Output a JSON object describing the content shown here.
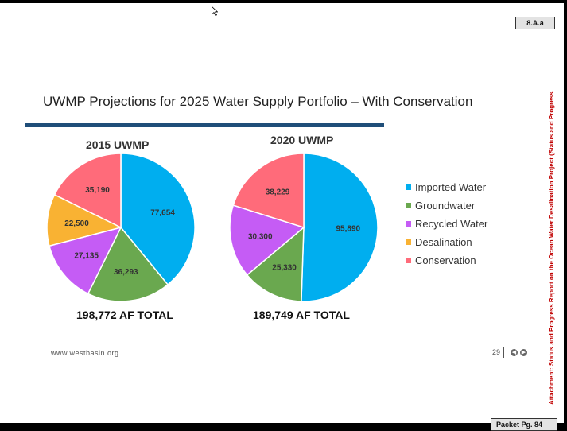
{
  "tag": "8.A.a",
  "slide": {
    "title": "UWMP Projections for 2025 Water Supply Portfolio – With Conservation",
    "footer_url": "www.westbasin.org",
    "page_number": "29"
  },
  "side_text": "Attachment: Status and Progress Report on the Ocean Water Desalination Project  (Status and Progress",
  "packet_label": "Packet Pg. 84",
  "colors": {
    "imported": "#00aeef",
    "groundwater": "#6aa84f",
    "recycled": "#c55cf5",
    "desalination": "#f9b233",
    "conservation": "#ff6b7a"
  },
  "chart_data": [
    {
      "type": "pie",
      "title": "2015 UWMP",
      "total_label": "198,772 AF TOTAL",
      "slices": [
        {
          "name": "Imported Water",
          "value": 77654,
          "label": "77,654",
          "color": "#00aeef"
        },
        {
          "name": "Groundwater",
          "value": 36293,
          "label": "36,293",
          "color": "#6aa84f"
        },
        {
          "name": "Recycled Water",
          "value": 27135,
          "label": "27,135",
          "color": "#c55cf5"
        },
        {
          "name": "Desalination",
          "value": 22500,
          "label": "22,500",
          "color": "#f9b233"
        },
        {
          "name": "Conservation",
          "value": 35190,
          "label": "35,190",
          "color": "#ff6b7a"
        }
      ]
    },
    {
      "type": "pie",
      "title": "2020 UWMP",
      "total_label": "189,749 AF TOTAL",
      "slices": [
        {
          "name": "Imported Water",
          "value": 95890,
          "label": "95,890",
          "color": "#00aeef"
        },
        {
          "name": "Groundwater",
          "value": 25330,
          "label": "25,330",
          "color": "#6aa84f"
        },
        {
          "name": "Recycled Water",
          "value": 30300,
          "label": "30,300",
          "color": "#c55cf5"
        },
        {
          "name": "Conservation",
          "value": 38229,
          "label": "38,229",
          "color": "#ff6b7a"
        }
      ]
    }
  ],
  "legend": [
    {
      "label": "Imported Water",
      "color": "#00aeef"
    },
    {
      "label": "Groundwater",
      "color": "#6aa84f"
    },
    {
      "label": "Recycled Water",
      "color": "#c55cf5"
    },
    {
      "label": "Desalination",
      "color": "#f9b233"
    },
    {
      "label": "Conservation",
      "color": "#ff6b7a"
    }
  ]
}
